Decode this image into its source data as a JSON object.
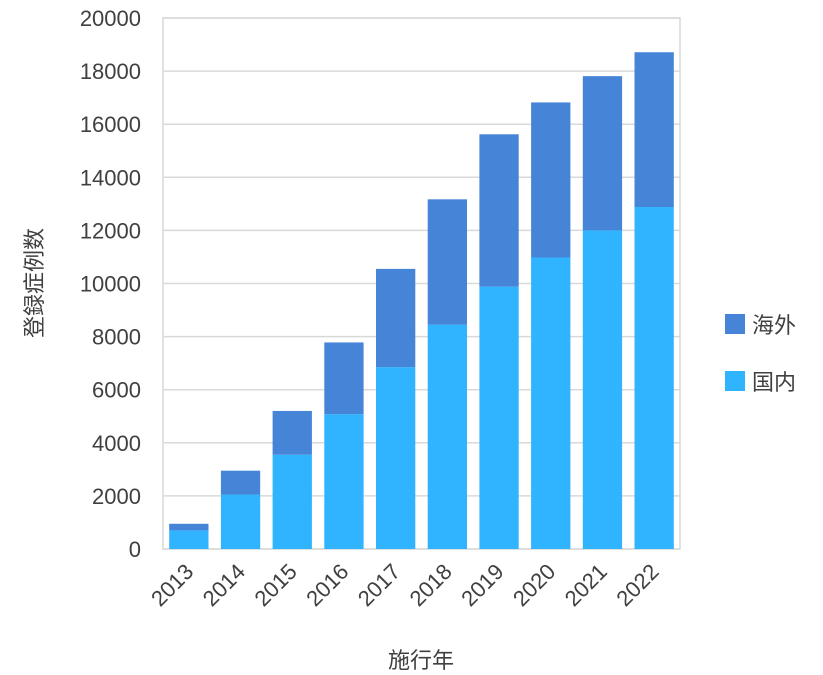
{
  "chart_data": {
    "type": "bar",
    "stacked": true,
    "categories": [
      "2013",
      "2014",
      "2015",
      "2016",
      "2017",
      "2018",
      "2019",
      "2020",
      "2021",
      "2022"
    ],
    "series": [
      {
        "name": "国内",
        "color": "#30b4ff",
        "values": [
          700,
          2050,
          3550,
          5080,
          6850,
          8450,
          9880,
          10980,
          12000,
          12880
        ]
      },
      {
        "name": "海外",
        "color": "#4584d6",
        "values": [
          250,
          900,
          1650,
          2700,
          3700,
          4720,
          5740,
          5840,
          5810,
          5830
        ]
      }
    ],
    "xlabel": "施行年",
    "ylabel": "登録症例数",
    "ylim": [
      0,
      20000
    ],
    "yticks": [
      "0",
      "2000",
      "4000",
      "6000",
      "8000",
      "10000",
      "12000",
      "14000",
      "16000",
      "18000",
      "20000"
    ],
    "legend_order": [
      "海外",
      "国内"
    ],
    "legend_position": "right",
    "grid": true
  }
}
